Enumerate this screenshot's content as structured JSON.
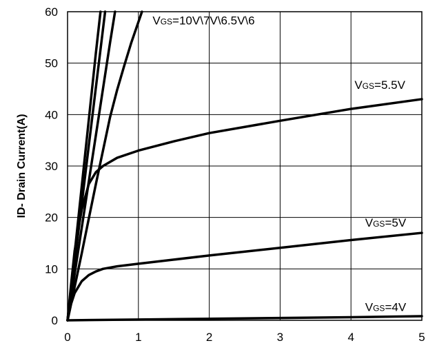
{
  "chart_data": {
    "type": "line",
    "title": "",
    "xlabel": "",
    "ylabel": "ID- Drain Current(A)",
    "xlim": [
      0,
      5
    ],
    "ylim": [
      0,
      60
    ],
    "x_ticks": [
      "0",
      "1",
      "2",
      "3",
      "4",
      "5"
    ],
    "y_ticks": [
      "0",
      "10",
      "20",
      "30",
      "40",
      "50",
      "60"
    ],
    "grid": true,
    "series": [
      {
        "x": [
          0,
          0.1,
          0.2,
          0.3,
          0.4,
          0.465
        ],
        "y": [
          0,
          13,
          26,
          39,
          52,
          60
        ]
      },
      {
        "x": [
          0,
          0.1,
          0.2,
          0.3,
          0.4,
          0.5,
          0.53
        ],
        "y": [
          0,
          11.3,
          22.6,
          34,
          45.3,
          56.6,
          60
        ]
      },
      {
        "x": [
          0,
          0.1,
          0.2,
          0.3,
          0.4,
          0.5,
          0.6,
          0.67
        ],
        "y": [
          0,
          9,
          18,
          27,
          36,
          45,
          54,
          60
        ]
      },
      {
        "x": [
          0,
          0.1,
          0.2,
          0.3,
          0.4,
          0.5,
          0.6,
          0.7,
          0.8,
          0.9,
          1.0,
          1.05
        ],
        "y": [
          0,
          6.5,
          13,
          19.8,
          26.5,
          33,
          39.5,
          44.8,
          49.5,
          54,
          58,
          60
        ]
      },
      {
        "x": [
          0,
          0.05,
          0.1,
          0.2,
          0.3,
          0.4,
          0.5,
          0.7,
          1.0,
          1.5,
          2.0,
          3.0,
          4.0,
          5.0
        ],
        "y": [
          0,
          7,
          13.5,
          21.5,
          26.5,
          28.8,
          30,
          31.6,
          33,
          34.8,
          36.4,
          38.8,
          41.1,
          43
        ]
      },
      {
        "x": [
          0,
          0.05,
          0.1,
          0.2,
          0.3,
          0.4,
          0.5,
          0.7,
          1.0,
          1.5,
          2.0,
          3.0,
          4.0,
          5.0
        ],
        "y": [
          0,
          3.2,
          5.3,
          7.6,
          8.8,
          9.5,
          10,
          10.5,
          11,
          11.8,
          12.6,
          14.1,
          15.6,
          17
        ]
      },
      {
        "x": [
          0,
          1,
          2,
          3,
          4,
          5
        ],
        "y": [
          0,
          0.15,
          0.3,
          0.45,
          0.6,
          0.8
        ]
      }
    ],
    "annotations": [
      {
        "prefix": "V",
        "sub": "GS",
        "suffix": "=10V\\7V\\6.5V\\6",
        "x": 1.2,
        "y": 57.5
      },
      {
        "prefix": "V",
        "sub": "GS",
        "suffix": "=5.5V",
        "x": 4.05,
        "y": 45
      },
      {
        "prefix": "V",
        "sub": "GS",
        "suffix": "=5V",
        "x": 4.2,
        "y": 18.2
      },
      {
        "prefix": "V",
        "sub": "GS",
        "suffix": "=4V",
        "x": 4.2,
        "y": 1.8
      }
    ]
  }
}
